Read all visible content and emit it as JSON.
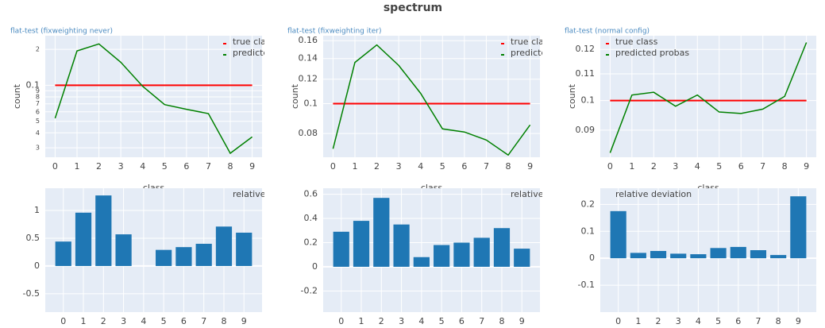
{
  "title": "spectrum",
  "chart_data": [
    {
      "type": "line",
      "title": "flat-test (fixweighting never)",
      "ylabel": "count",
      "xlabel": "class",
      "log_y": true,
      "x": [
        0,
        1,
        2,
        3,
        4,
        5,
        6,
        7,
        8,
        9
      ],
      "xlim": [
        -0.45,
        9.45
      ],
      "xticks": [
        0,
        1,
        2,
        3,
        4,
        5,
        6,
        7,
        8,
        9
      ],
      "ylim": [
        0.025,
        0.26
      ],
      "yticks": [
        {
          "value": 0.03,
          "label": "3"
        },
        {
          "value": 0.04,
          "label": "4"
        },
        {
          "value": 0.05,
          "label": "5"
        },
        {
          "value": 0.06,
          "label": "6"
        },
        {
          "value": 0.07,
          "label": "7"
        },
        {
          "value": 0.08,
          "label": "8"
        },
        {
          "value": 0.09,
          "label": "9"
        },
        0.1,
        {
          "value": 0.2,
          "label": "2"
        }
      ],
      "grid": true,
      "legend": "upper right",
      "series": [
        {
          "name": "true class",
          "color": "#ff0000",
          "values": [
            0.1,
            0.1,
            0.1,
            0.1,
            0.1,
            0.1,
            0.1,
            0.1,
            0.1,
            0.1
          ]
        },
        {
          "name": "predicted probas",
          "color": "#008000",
          "values": [
            0.053,
            0.194,
            0.222,
            0.156,
            0.098,
            0.069,
            0.063,
            0.058,
            0.027,
            0.037
          ]
        }
      ]
    },
    {
      "type": "line",
      "title": "flat-test (fixweighting iter)",
      "ylabel": "count",
      "xlabel": "class",
      "log_y": true,
      "x": [
        0,
        1,
        2,
        3,
        4,
        5,
        6,
        7,
        8,
        9
      ],
      "xlim": [
        -0.45,
        9.45
      ],
      "xticks": [
        0,
        1,
        2,
        3,
        4,
        5,
        6,
        7,
        8,
        9
      ],
      "ylim": [
        0.067,
        0.166
      ],
      "yticks": [
        0.08,
        0.1,
        0.12,
        0.14,
        0.16
      ],
      "grid": true,
      "legend": "upper right",
      "series": [
        {
          "name": "true class",
          "color": "#ff0000",
          "values": [
            0.1,
            0.1,
            0.1,
            0.1,
            0.1,
            0.1,
            0.1,
            0.1,
            0.1,
            0.1
          ]
        },
        {
          "name": "predicted probas",
          "color": "#008000",
          "values": [
            0.0714,
            0.136,
            0.155,
            0.133,
            0.108,
            0.0828,
            0.0809,
            0.0762,
            0.0681,
            0.0853
          ]
        }
      ]
    },
    {
      "type": "line",
      "title": "flat-test (normal config)",
      "ylabel": "count",
      "xlabel": "class",
      "log_y": true,
      "x": [
        0,
        1,
        2,
        3,
        4,
        5,
        6,
        7,
        8,
        9
      ],
      "xlim": [
        -0.45,
        9.45
      ],
      "xticks": [
        0,
        1,
        2,
        3,
        4,
        5,
        6,
        7,
        8,
        9
      ],
      "ylim": [
        0.0817,
        0.126
      ],
      "yticks": [
        0.09,
        0.1,
        0.11,
        0.12
      ],
      "grid": true,
      "legend": "upper left",
      "series": [
        {
          "name": "true class",
          "color": "#ff0000",
          "values": [
            0.1,
            0.1,
            0.1,
            0.1,
            0.1,
            0.1,
            0.1,
            0.1,
            0.1,
            0.1
          ]
        },
        {
          "name": "predicted probas",
          "color": "#008000",
          "values": [
            0.083,
            0.102,
            0.103,
            0.098,
            0.102,
            0.096,
            0.0955,
            0.097,
            0.1015,
            0.123
          ]
        }
      ]
    },
    {
      "type": "bar",
      "x": [
        0,
        1,
        2,
        3,
        4,
        5,
        6,
        7,
        8,
        9
      ],
      "xlim": [
        -0.9,
        9.9
      ],
      "xticks": [
        0,
        1,
        2,
        3,
        4,
        5,
        6,
        7,
        8,
        9
      ],
      "ylim": [
        -0.83,
        1.4
      ],
      "yticks": [
        -0.5,
        0,
        0.5,
        1
      ],
      "grid": true,
      "legend": "upper right",
      "series": [
        {
          "name": "relative deviation",
          "color": "#1f77b4",
          "values": [
            0.44,
            0.96,
            1.27,
            0.57,
            0,
            0.29,
            0.34,
            0.4,
            0.71,
            0.6
          ]
        }
      ]
    },
    {
      "type": "bar",
      "x": [
        0,
        1,
        2,
        3,
        4,
        5,
        6,
        7,
        8,
        9
      ],
      "xlim": [
        -0.9,
        9.9
      ],
      "xticks": [
        0,
        1,
        2,
        3,
        4,
        5,
        6,
        7,
        8,
        9
      ],
      "ylim": [
        -0.375,
        0.65
      ],
      "yticks": [
        -0.2,
        0,
        0.2,
        0.4,
        0.6
      ],
      "grid": true,
      "legend": "upper right",
      "series": [
        {
          "name": "relative deviation",
          "color": "#1f77b4",
          "values": [
            0.29,
            0.38,
            0.57,
            0.35,
            0.08,
            0.18,
            0.2,
            0.24,
            0.32,
            0.15
          ]
        }
      ]
    },
    {
      "type": "bar",
      "x": [
        0,
        1,
        2,
        3,
        4,
        5,
        6,
        7,
        8,
        9
      ],
      "xlim": [
        -0.9,
        9.9
      ],
      "xticks": [
        0,
        1,
        2,
        3,
        4,
        5,
        6,
        7,
        8,
        9
      ],
      "ylim": [
        -0.2,
        0.26
      ],
      "yticks": [
        -0.1,
        0,
        0.1,
        0.2
      ],
      "grid": true,
      "legend": "upper left",
      "series": [
        {
          "name": "relative deviation",
          "color": "#1f77b4",
          "values": [
            0.175,
            0.02,
            0.027,
            0.017,
            0.015,
            0.038,
            0.042,
            0.03,
            0.012,
            0.23
          ]
        }
      ]
    }
  ]
}
